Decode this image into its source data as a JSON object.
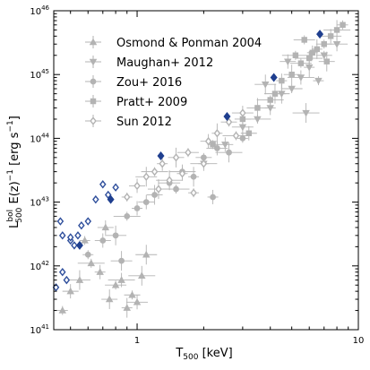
{
  "chart_data": {
    "type": "scatter",
    "xscale": "log",
    "yscale": "log",
    "xlim": [
      0.42,
      10
    ],
    "ylim": [
      1e+41,
      1e+46
    ],
    "xlabel_main": "T",
    "xlabel_sub": "500",
    "xlabel_rest": " [keV]",
    "ylabel_L": "L",
    "ylabel_sup": "bol",
    "ylabel_sub": "500",
    "ylabel_mid": " E(z)",
    "ylabel_exp1": "−1",
    "ylabel_unit": " [erg s",
    "ylabel_exp2": "−1",
    "ylabel_end": "]",
    "x_ticks": [
      {
        "value": 1,
        "label": "1"
      },
      {
        "value": 10,
        "label": "10"
      }
    ],
    "y_ticks": [
      {
        "value": 1e+41,
        "base": "10",
        "exp": "41"
      },
      {
        "value": 1e+42,
        "base": "10",
        "exp": "42"
      },
      {
        "value": 1e+43,
        "base": "10",
        "exp": "43"
      },
      {
        "value": 1e+44,
        "base": "10",
        "exp": "44"
      },
      {
        "value": 1e+45,
        "base": "10",
        "exp": "45"
      },
      {
        "value": 1e+46,
        "base": "10",
        "exp": "46"
      }
    ],
    "legend_position": "top-left",
    "legend": [
      {
        "label": "Osmond & Ponman 2004",
        "marker": "triangle-up"
      },
      {
        "label": "Maughan+ 2012",
        "marker": "triangle-down"
      },
      {
        "label": "Zou+ 2016",
        "marker": "circle"
      },
      {
        "label": "Pratt+ 2009",
        "marker": "square"
      },
      {
        "label": "Sun 2012",
        "marker": "open-diamond"
      }
    ],
    "colors": {
      "literature": "#b3b3b3",
      "open_diamond_blue": "#2f4f9c",
      "filled_diamond_blue": "#1f3f8f"
    },
    "series": [
      {
        "name": "Osmond & Ponman 2004",
        "marker": "triangle-up",
        "color": "#b3b3b3",
        "x": [
          0.46,
          0.5,
          0.55,
          0.62,
          0.68,
          0.75,
          0.8,
          0.85,
          0.9,
          0.95,
          1.0,
          1.05,
          0.58,
          0.72,
          1.1
        ],
        "y": [
          2e+41,
          4e+41,
          6e+41,
          1.1e+42,
          8e+41,
          3e+41,
          5e+41,
          6e+41,
          2.2e+41,
          3.5e+41,
          2.7e+41,
          7e+41,
          2.5e+42,
          4e+42,
          1.5e+42
        ]
      },
      {
        "name": "Maughan+ 2012",
        "marker": "triangle-down",
        "color": "#b3b3b3",
        "x": [
          2.0,
          2.5,
          3.0,
          3.5,
          4.0,
          4.5,
          5.0,
          5.5,
          6.0,
          7.0,
          8.0,
          5.8,
          6.6,
          4.8,
          3.8
        ],
        "y": [
          4e+43,
          8e+43,
          1.5e+44,
          2e+44,
          3e+44,
          5e+44,
          6e+44,
          9e+44,
          1.3e+45,
          2e+45,
          3e+45,
          2.5e+44,
          8e+44,
          1.6e+45,
          7e+44
        ]
      },
      {
        "name": "Zou+ 2016",
        "marker": "circle",
        "color": "#b3b3b3",
        "x": [
          0.6,
          0.7,
          0.8,
          0.9,
          1.0,
          1.2,
          1.4,
          1.6,
          1.8,
          2.0,
          2.3,
          2.6,
          3.0,
          1.1,
          0.85,
          1.5,
          2.2
        ],
        "y": [
          1.5e+42,
          2.5e+42,
          3e+42,
          6e+42,
          8e+42,
          1.3e+43,
          2e+43,
          3e+43,
          2.5e+43,
          5e+43,
          7e+43,
          6e+43,
          1e+44,
          1e+43,
          1.2e+42,
          1.6e+43,
          1.2e+43
        ]
      },
      {
        "name": "Pratt+ 2009",
        "marker": "square",
        "color": "#b3b3b3",
        "x": [
          2.2,
          3.0,
          3.5,
          4.0,
          4.5,
          5.0,
          5.5,
          6.0,
          6.5,
          7.0,
          7.5,
          8.0,
          8.5,
          3.2,
          4.2,
          5.2,
          6.2,
          7.2,
          5.7
        ],
        "y": [
          8e+43,
          2e+44,
          3e+44,
          4e+44,
          8e+44,
          1e+45,
          1.5e+45,
          1.8e+45,
          2.5e+45,
          3e+45,
          4e+45,
          5e+45,
          6e+45,
          1.2e+44,
          5e+44,
          2e+45,
          2.2e+45,
          1.6e+45,
          3.5e+45
        ]
      },
      {
        "name": "Sun 2012",
        "marker": "open-diamond",
        "color": "#b3b3b3",
        "x": [
          0.9,
          1.0,
          1.1,
          1.2,
          1.3,
          1.5,
          1.7,
          2.0,
          2.3,
          2.6,
          3.0,
          1.4,
          1.8,
          2.1,
          1.25,
          2.8,
          1.6
        ],
        "y": [
          1.2e+43,
          1.8e+43,
          2.5e+43,
          3e+43,
          4e+43,
          5e+43,
          6e+43,
          4e+43,
          1.2e+44,
          1.8e+44,
          2.5e+44,
          2.2e+43,
          1.4e+43,
          9e+43,
          1.6e+43,
          1.1e+44,
          2.8e+43
        ]
      },
      {
        "name": "",
        "marker": "open-diamond",
        "color": "#2f4f9c",
        "x": [
          0.43,
          0.45,
          0.46,
          0.48,
          0.5,
          0.52,
          0.54,
          0.56,
          0.6,
          0.65,
          0.7,
          0.74,
          0.8,
          0.46,
          0.5
        ],
        "y": [
          4.6e+41,
          5e+42,
          3e+42,
          6e+41,
          2.5e+42,
          2.1e+42,
          3e+42,
          4.3e+42,
          5e+42,
          1.1e+43,
          1.9e+43,
          1.3e+43,
          1.7e+43,
          8e+41,
          2.8e+42
        ]
      },
      {
        "name": "",
        "marker": "filled-diamond",
        "color": "#1f3f8f",
        "x": [
          0.55,
          0.76,
          1.28,
          2.55,
          4.15,
          6.7
        ],
        "y": [
          2.1e+42,
          1.1e+43,
          5.3e+43,
          2.2e+44,
          9e+44,
          4.3e+45
        ]
      }
    ]
  }
}
